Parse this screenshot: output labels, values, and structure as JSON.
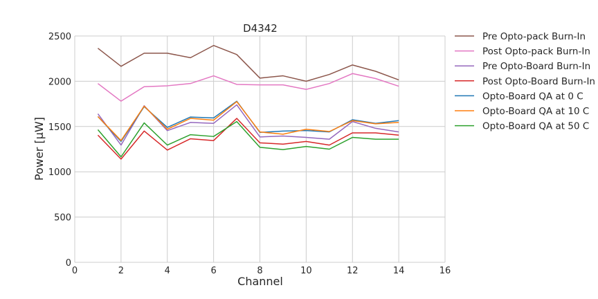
{
  "chart_data": {
    "type": "line",
    "title": "D4342",
    "xlabel": "Channel",
    "ylabel": "Power [μW]",
    "xlim": [
      0,
      16
    ],
    "ylim": [
      0,
      2500
    ],
    "xticks": [
      0,
      2,
      4,
      6,
      8,
      10,
      12,
      14,
      16
    ],
    "yticks": [
      0,
      500,
      1000,
      1500,
      2000,
      2500
    ],
    "grid": true,
    "legend_position": "outside-right",
    "x": [
      1,
      2,
      3,
      4,
      5,
      6,
      7,
      8,
      9,
      10,
      11,
      12,
      13,
      14
    ],
    "series": [
      {
        "name": "Pre Opto-pack Burn-In",
        "color": "#8c564b",
        "values": [
          2365,
          2165,
          2310,
          2310,
          2260,
          2395,
          2295,
          2035,
          2060,
          2000,
          2075,
          2180,
          2110,
          2015
        ]
      },
      {
        "name": "Post Opto-pack Burn-In",
        "color": "#e377c2",
        "values": [
          1975,
          1780,
          1940,
          1950,
          1975,
          2060,
          1965,
          1960,
          1960,
          1910,
          1975,
          2085,
          2030,
          1945
        ]
      },
      {
        "name": "Pre Opto-Board Burn-In",
        "color": "#9467bd",
        "values": [
          1640,
          1295,
          1730,
          1455,
          1545,
          1535,
          1740,
          1385,
          1395,
          1380,
          1360,
          1555,
          1480,
          1440
        ]
      },
      {
        "name": "Post Opto-Board Burn-In",
        "color": "#d62728",
        "values": [
          1405,
          1140,
          1450,
          1240,
          1365,
          1345,
          1590,
          1320,
          1305,
          1335,
          1295,
          1430,
          1430,
          1405
        ]
      },
      {
        "name": "Opto-Board QA at 0 C",
        "color": "#1f77b4",
        "values": [
          1610,
          1335,
          1720,
          1490,
          1605,
          1595,
          1780,
          1435,
          1450,
          1455,
          1440,
          1575,
          1535,
          1565
        ]
      },
      {
        "name": "Opto-Board QA at 10 C",
        "color": "#ff7f0e",
        "values": [
          1610,
          1345,
          1725,
          1470,
          1590,
          1570,
          1775,
          1440,
          1415,
          1470,
          1445,
          1565,
          1530,
          1545
        ]
      },
      {
        "name": "Opto-Board QA at 50 C",
        "color": "#2ca02c",
        "values": [
          1465,
          1165,
          1540,
          1295,
          1410,
          1390,
          1555,
          1270,
          1245,
          1280,
          1250,
          1380,
          1360,
          1360
        ]
      }
    ]
  }
}
